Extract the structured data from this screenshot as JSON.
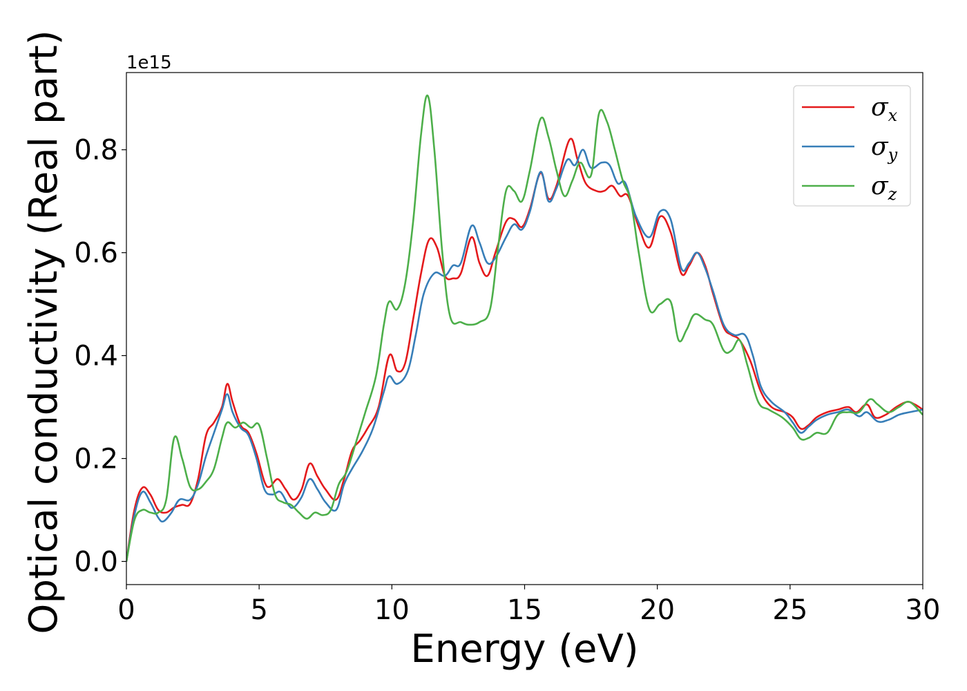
{
  "chart_data": {
    "type": "line",
    "title": "",
    "xlabel": "Energy (eV)",
    "ylabel": "Optical conductivity (Real part)",
    "offset_text": "1e15",
    "xlim": [
      0,
      30
    ],
    "ylim": [
      -0.045,
      0.95
    ],
    "xticks": [
      0,
      5,
      10,
      15,
      20,
      25,
      30
    ],
    "xtick_labels": [
      "0",
      "5",
      "10",
      "15",
      "20",
      "25",
      "30"
    ],
    "yticks": [
      0.0,
      0.2,
      0.4,
      0.6,
      0.8
    ],
    "ytick_labels": [
      "0.0",
      "0.2",
      "0.4",
      "0.6",
      "0.8"
    ],
    "grid": false,
    "legend_position": "top-right",
    "series": [
      {
        "name": "σx",
        "legend_base": "σ",
        "legend_sub": "x",
        "color": "#e41a1c",
        "points": [
          [
            0,
            0
          ],
          [
            0.3,
            0.1
          ],
          [
            0.6,
            0.143
          ],
          [
            0.9,
            0.13
          ],
          [
            1.2,
            0.1
          ],
          [
            1.5,
            0.095
          ],
          [
            1.8,
            0.105
          ],
          [
            2.1,
            0.11
          ],
          [
            2.4,
            0.112
          ],
          [
            2.7,
            0.16
          ],
          [
            3.0,
            0.245
          ],
          [
            3.3,
            0.27
          ],
          [
            3.6,
            0.3
          ],
          [
            3.8,
            0.345
          ],
          [
            4.0,
            0.31
          ],
          [
            4.3,
            0.265
          ],
          [
            4.6,
            0.25
          ],
          [
            4.9,
            0.21
          ],
          [
            5.2,
            0.155
          ],
          [
            5.4,
            0.145
          ],
          [
            5.7,
            0.16
          ],
          [
            6.0,
            0.14
          ],
          [
            6.3,
            0.12
          ],
          [
            6.6,
            0.14
          ],
          [
            6.9,
            0.19
          ],
          [
            7.2,
            0.165
          ],
          [
            7.5,
            0.14
          ],
          [
            7.9,
            0.12
          ],
          [
            8.2,
            0.16
          ],
          [
            8.5,
            0.215
          ],
          [
            8.8,
            0.235
          ],
          [
            9.1,
            0.26
          ],
          [
            9.5,
            0.3
          ],
          [
            9.9,
            0.4
          ],
          [
            10.2,
            0.37
          ],
          [
            10.5,
            0.385
          ],
          [
            10.8,
            0.47
          ],
          [
            11.1,
            0.56
          ],
          [
            11.4,
            0.625
          ],
          [
            11.7,
            0.61
          ],
          [
            12.0,
            0.555
          ],
          [
            12.3,
            0.55
          ],
          [
            12.6,
            0.56
          ],
          [
            13.0,
            0.63
          ],
          [
            13.3,
            0.58
          ],
          [
            13.6,
            0.555
          ],
          [
            13.9,
            0.6
          ],
          [
            14.3,
            0.66
          ],
          [
            14.6,
            0.665
          ],
          [
            14.9,
            0.65
          ],
          [
            15.2,
            0.685
          ],
          [
            15.6,
            0.755
          ],
          [
            15.9,
            0.705
          ],
          [
            16.2,
            0.73
          ],
          [
            16.7,
            0.82
          ],
          [
            17.0,
            0.78
          ],
          [
            17.3,
            0.735
          ],
          [
            17.7,
            0.72
          ],
          [
            18.0,
            0.72
          ],
          [
            18.3,
            0.73
          ],
          [
            18.6,
            0.71
          ],
          [
            18.9,
            0.71
          ],
          [
            19.3,
            0.65
          ],
          [
            19.7,
            0.61
          ],
          [
            20.1,
            0.67
          ],
          [
            20.5,
            0.64
          ],
          [
            20.9,
            0.56
          ],
          [
            21.2,
            0.575
          ],
          [
            21.5,
            0.6
          ],
          [
            21.8,
            0.575
          ],
          [
            22.1,
            0.52
          ],
          [
            22.5,
            0.455
          ],
          [
            22.8,
            0.44
          ],
          [
            23.1,
            0.43
          ],
          [
            23.5,
            0.39
          ],
          [
            23.9,
            0.33
          ],
          [
            24.3,
            0.3
          ],
          [
            24.8,
            0.29
          ],
          [
            25.1,
            0.28
          ],
          [
            25.4,
            0.258
          ],
          [
            25.7,
            0.265
          ],
          [
            26.0,
            0.28
          ],
          [
            26.4,
            0.29
          ],
          [
            26.8,
            0.295
          ],
          [
            27.2,
            0.3
          ],
          [
            27.5,
            0.29
          ],
          [
            27.9,
            0.305
          ],
          [
            28.2,
            0.28
          ],
          [
            28.6,
            0.285
          ],
          [
            29.0,
            0.3
          ],
          [
            29.4,
            0.31
          ],
          [
            29.7,
            0.305
          ],
          [
            30.0,
            0.295
          ]
        ]
      },
      {
        "name": "σy",
        "legend_base": "σ",
        "legend_sub": "y",
        "color": "#377eb8",
        "points": [
          [
            0,
            0
          ],
          [
            0.3,
            0.09
          ],
          [
            0.6,
            0.135
          ],
          [
            0.9,
            0.115
          ],
          [
            1.2,
            0.085
          ],
          [
            1.4,
            0.078
          ],
          [
            1.7,
            0.095
          ],
          [
            2.0,
            0.12
          ],
          [
            2.4,
            0.12
          ],
          [
            2.7,
            0.15
          ],
          [
            3.0,
            0.205
          ],
          [
            3.3,
            0.25
          ],
          [
            3.6,
            0.295
          ],
          [
            3.8,
            0.325
          ],
          [
            4.0,
            0.29
          ],
          [
            4.3,
            0.26
          ],
          [
            4.6,
            0.245
          ],
          [
            4.9,
            0.2
          ],
          [
            5.2,
            0.14
          ],
          [
            5.5,
            0.13
          ],
          [
            5.8,
            0.135
          ],
          [
            6.1,
            0.11
          ],
          [
            6.3,
            0.105
          ],
          [
            6.6,
            0.125
          ],
          [
            6.9,
            0.16
          ],
          [
            7.2,
            0.14
          ],
          [
            7.5,
            0.115
          ],
          [
            7.9,
            0.1
          ],
          [
            8.2,
            0.15
          ],
          [
            8.5,
            0.18
          ],
          [
            8.9,
            0.215
          ],
          [
            9.3,
            0.26
          ],
          [
            9.7,
            0.33
          ],
          [
            9.9,
            0.36
          ],
          [
            10.2,
            0.345
          ],
          [
            10.6,
            0.37
          ],
          [
            10.9,
            0.44
          ],
          [
            11.2,
            0.52
          ],
          [
            11.6,
            0.56
          ],
          [
            12.0,
            0.555
          ],
          [
            12.3,
            0.575
          ],
          [
            12.6,
            0.58
          ],
          [
            13.0,
            0.652
          ],
          [
            13.3,
            0.62
          ],
          [
            13.6,
            0.58
          ],
          [
            13.9,
            0.59
          ],
          [
            14.3,
            0.63
          ],
          [
            14.6,
            0.655
          ],
          [
            14.9,
            0.645
          ],
          [
            15.2,
            0.68
          ],
          [
            15.6,
            0.757
          ],
          [
            15.9,
            0.7
          ],
          [
            16.2,
            0.725
          ],
          [
            16.6,
            0.78
          ],
          [
            16.9,
            0.77
          ],
          [
            17.2,
            0.8
          ],
          [
            17.5,
            0.765
          ],
          [
            17.9,
            0.775
          ],
          [
            18.2,
            0.77
          ],
          [
            18.5,
            0.735
          ],
          [
            18.8,
            0.735
          ],
          [
            19.2,
            0.67
          ],
          [
            19.7,
            0.63
          ],
          [
            20.1,
            0.68
          ],
          [
            20.5,
            0.665
          ],
          [
            20.9,
            0.57
          ],
          [
            21.2,
            0.58
          ],
          [
            21.5,
            0.6
          ],
          [
            21.8,
            0.57
          ],
          [
            22.1,
            0.525
          ],
          [
            22.5,
            0.46
          ],
          [
            22.9,
            0.44
          ],
          [
            23.3,
            0.44
          ],
          [
            23.6,
            0.4
          ],
          [
            23.9,
            0.34
          ],
          [
            24.3,
            0.31
          ],
          [
            24.8,
            0.29
          ],
          [
            25.1,
            0.27
          ],
          [
            25.4,
            0.25
          ],
          [
            25.7,
            0.262
          ],
          [
            26.0,
            0.275
          ],
          [
            26.4,
            0.285
          ],
          [
            26.8,
            0.29
          ],
          [
            27.2,
            0.295
          ],
          [
            27.6,
            0.282
          ],
          [
            27.9,
            0.29
          ],
          [
            28.3,
            0.272
          ],
          [
            28.7,
            0.275
          ],
          [
            29.1,
            0.285
          ],
          [
            29.5,
            0.29
          ],
          [
            30.0,
            0.295
          ]
        ]
      },
      {
        "name": "σz",
        "legend_base": "σ",
        "legend_sub": "z",
        "color": "#4daf4a",
        "points": [
          [
            0,
            0
          ],
          [
            0.3,
            0.08
          ],
          [
            0.6,
            0.1
          ],
          [
            0.9,
            0.095
          ],
          [
            1.2,
            0.095
          ],
          [
            1.5,
            0.12
          ],
          [
            1.8,
            0.24
          ],
          [
            2.1,
            0.2
          ],
          [
            2.4,
            0.145
          ],
          [
            2.7,
            0.14
          ],
          [
            3.0,
            0.155
          ],
          [
            3.3,
            0.18
          ],
          [
            3.6,
            0.24
          ],
          [
            3.8,
            0.27
          ],
          [
            4.1,
            0.26
          ],
          [
            4.4,
            0.27
          ],
          [
            4.7,
            0.26
          ],
          [
            5.0,
            0.265
          ],
          [
            5.3,
            0.2
          ],
          [
            5.6,
            0.13
          ],
          [
            5.9,
            0.115
          ],
          [
            6.2,
            0.11
          ],
          [
            6.5,
            0.095
          ],
          [
            6.8,
            0.083
          ],
          [
            7.1,
            0.095
          ],
          [
            7.4,
            0.09
          ],
          [
            7.7,
            0.1
          ],
          [
            8.0,
            0.15
          ],
          [
            8.3,
            0.175
          ],
          [
            8.7,
            0.24
          ],
          [
            9.0,
            0.29
          ],
          [
            9.4,
            0.36
          ],
          [
            9.7,
            0.46
          ],
          [
            9.9,
            0.505
          ],
          [
            10.2,
            0.49
          ],
          [
            10.5,
            0.54
          ],
          [
            10.8,
            0.66
          ],
          [
            11.1,
            0.83
          ],
          [
            11.35,
            0.905
          ],
          [
            11.6,
            0.8
          ],
          [
            11.9,
            0.6
          ],
          [
            12.2,
            0.475
          ],
          [
            12.6,
            0.465
          ],
          [
            12.9,
            0.46
          ],
          [
            13.3,
            0.465
          ],
          [
            13.7,
            0.49
          ],
          [
            14.0,
            0.61
          ],
          [
            14.3,
            0.72
          ],
          [
            14.6,
            0.72
          ],
          [
            14.9,
            0.7
          ],
          [
            15.2,
            0.76
          ],
          [
            15.6,
            0.86
          ],
          [
            15.9,
            0.825
          ],
          [
            16.2,
            0.76
          ],
          [
            16.5,
            0.71
          ],
          [
            16.8,
            0.74
          ],
          [
            17.1,
            0.775
          ],
          [
            17.5,
            0.75
          ],
          [
            17.8,
            0.87
          ],
          [
            18.1,
            0.855
          ],
          [
            18.4,
            0.8
          ],
          [
            18.7,
            0.74
          ],
          [
            19.0,
            0.7
          ],
          [
            19.3,
            0.6
          ],
          [
            19.7,
            0.49
          ],
          [
            20.1,
            0.5
          ],
          [
            20.5,
            0.505
          ],
          [
            20.8,
            0.43
          ],
          [
            21.1,
            0.45
          ],
          [
            21.4,
            0.48
          ],
          [
            21.8,
            0.47
          ],
          [
            22.1,
            0.46
          ],
          [
            22.5,
            0.41
          ],
          [
            22.8,
            0.41
          ],
          [
            23.1,
            0.43
          ],
          [
            23.4,
            0.38
          ],
          [
            23.8,
            0.31
          ],
          [
            24.2,
            0.295
          ],
          [
            24.7,
            0.28
          ],
          [
            25.1,
            0.26
          ],
          [
            25.4,
            0.238
          ],
          [
            25.7,
            0.24
          ],
          [
            26.0,
            0.25
          ],
          [
            26.4,
            0.25
          ],
          [
            26.8,
            0.285
          ],
          [
            27.2,
            0.29
          ],
          [
            27.6,
            0.29
          ],
          [
            28.0,
            0.315
          ],
          [
            28.3,
            0.305
          ],
          [
            28.7,
            0.29
          ],
          [
            29.1,
            0.3
          ],
          [
            29.5,
            0.31
          ],
          [
            30.0,
            0.285
          ]
        ]
      }
    ]
  }
}
